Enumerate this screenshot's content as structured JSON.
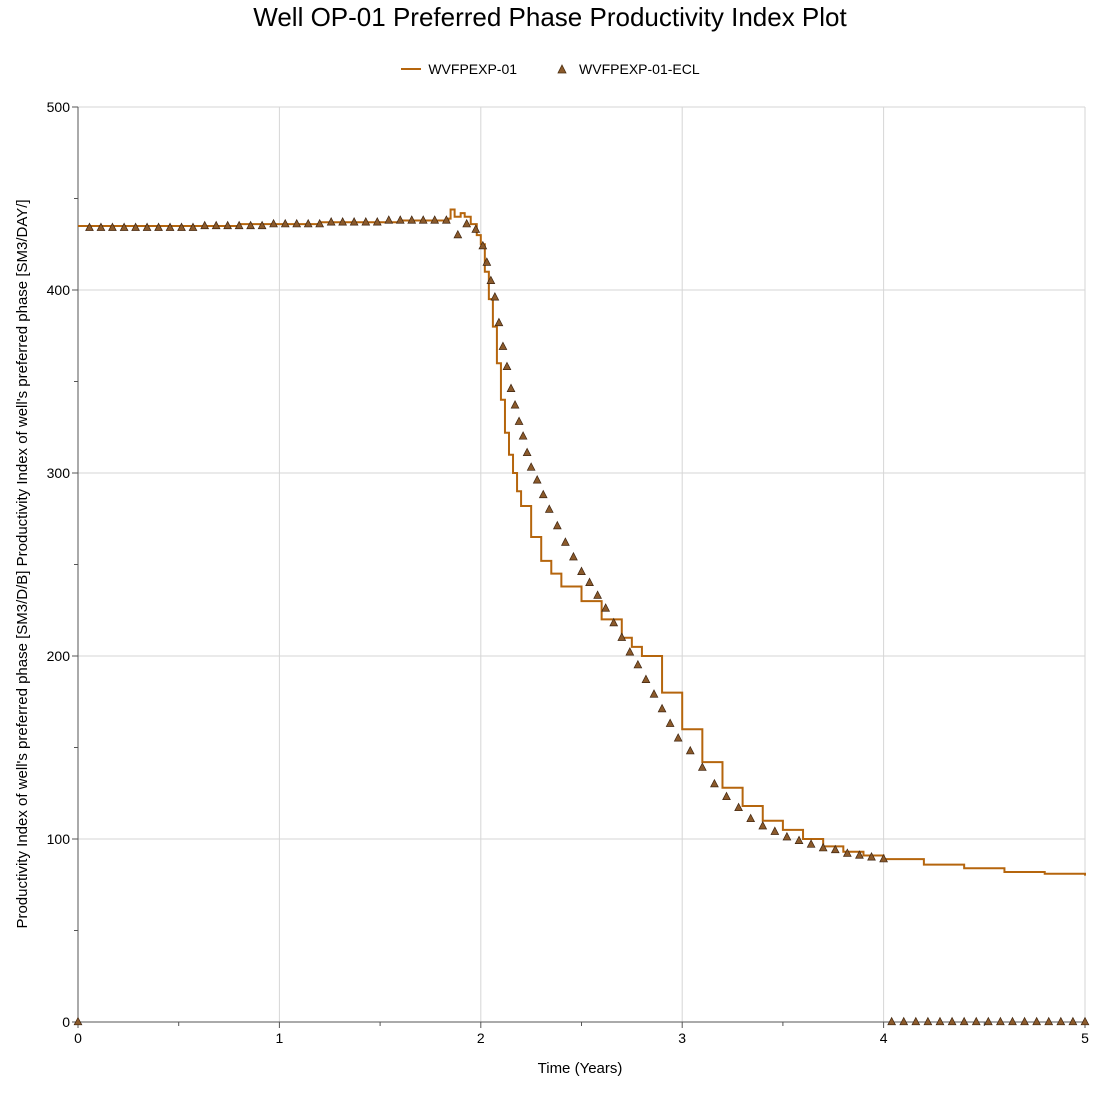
{
  "chart_data": {
    "type": "line",
    "title": "Well OP-01 Preferred Phase Productivity Index Plot",
    "xlabel": "Time (Years)",
    "ylabel": "Productivity Index of well's preferred phase [SM3/D/B] Productivity Index of well's preferred phase [SM3/DAY/]",
    "xlim": [
      0,
      5
    ],
    "ylim": [
      0,
      500
    ],
    "x_ticks": [
      "0",
      "1",
      "2",
      "3",
      "4",
      "5"
    ],
    "y_ticks": [
      "0",
      "100",
      "200",
      "300",
      "400",
      "500"
    ],
    "grid": true,
    "legend_position": "top-center",
    "series": [
      {
        "name": "WVFPEXP-01",
        "style": "step-line",
        "color": "#b5650d",
        "x": [
          0,
          0.2,
          0.4,
          0.6,
          0.8,
          1.0,
          1.2,
          1.4,
          1.6,
          1.84,
          1.85,
          1.87,
          1.9,
          1.92,
          1.95,
          1.98,
          2.0,
          2.02,
          2.04,
          2.06,
          2.08,
          2.1,
          2.12,
          2.14,
          2.16,
          2.18,
          2.2,
          2.25,
          2.3,
          2.35,
          2.4,
          2.5,
          2.6,
          2.7,
          2.75,
          2.8,
          2.9,
          3.0,
          3.1,
          3.2,
          3.3,
          3.4,
          3.5,
          3.6,
          3.7,
          3.8,
          3.9,
          4.0,
          4.2,
          4.4,
          4.6,
          4.8,
          5.0
        ],
        "y": [
          435,
          435,
          435,
          435,
          436,
          436,
          437,
          437,
          438,
          439,
          444,
          440,
          442,
          440,
          436,
          430,
          425,
          410,
          395,
          380,
          360,
          340,
          322,
          310,
          300,
          290,
          282,
          265,
          252,
          245,
          238,
          230,
          220,
          210,
          205,
          200,
          180,
          160,
          142,
          128,
          118,
          110,
          105,
          100,
          96,
          93,
          91,
          89,
          86,
          84,
          82,
          81,
          80
        ]
      },
      {
        "name": "WVFPEXP-01-ECL",
        "style": "triangle-markers",
        "color": "#8b5a2b",
        "x": [
          0,
          0.057,
          0.114,
          0.171,
          0.229,
          0.286,
          0.343,
          0.4,
          0.457,
          0.514,
          0.571,
          0.629,
          0.686,
          0.743,
          0.8,
          0.857,
          0.914,
          0.971,
          1.029,
          1.086,
          1.143,
          1.2,
          1.257,
          1.314,
          1.371,
          1.429,
          1.486,
          1.543,
          1.6,
          1.657,
          1.714,
          1.771,
          1.829,
          1.886,
          1.93,
          1.975,
          2.01,
          2.03,
          2.05,
          2.07,
          2.09,
          2.11,
          2.13,
          2.15,
          2.17,
          2.19,
          2.21,
          2.23,
          2.25,
          2.28,
          2.31,
          2.34,
          2.38,
          2.42,
          2.46,
          2.5,
          2.54,
          2.58,
          2.62,
          2.66,
          2.7,
          2.74,
          2.78,
          2.82,
          2.86,
          2.9,
          2.94,
          2.98,
          3.04,
          3.1,
          3.16,
          3.22,
          3.28,
          3.34,
          3.4,
          3.46,
          3.52,
          3.58,
          3.64,
          3.7,
          3.76,
          3.82,
          3.88,
          3.94,
          4.0,
          4.04,
          4.1,
          4.16,
          4.22,
          4.28,
          4.34,
          4.4,
          4.46,
          4.52,
          4.58,
          4.64,
          4.7,
          4.76,
          4.82,
          4.88,
          4.94,
          5.0
        ],
        "y": [
          0,
          434,
          434,
          434,
          434,
          434,
          434,
          434,
          434,
          434,
          434,
          435,
          435,
          435,
          435,
          435,
          435,
          436,
          436,
          436,
          436,
          436,
          437,
          437,
          437,
          437,
          437,
          438,
          438,
          438,
          438,
          438,
          438,
          430,
          436,
          433,
          424,
          415,
          405,
          396,
          382,
          369,
          358,
          346,
          337,
          328,
          320,
          311,
          303,
          296,
          288,
          280,
          271,
          262,
          254,
          246,
          240,
          233,
          226,
          218,
          210,
          202,
          195,
          187,
          179,
          171,
          163,
          155,
          148,
          139,
          130,
          123,
          117,
          111,
          107,
          104,
          101,
          99,
          97,
          95,
          94,
          92,
          91,
          90,
          89,
          0,
          0,
          0,
          0,
          0,
          0,
          0,
          0,
          0,
          0,
          0,
          0,
          0,
          0,
          0,
          0,
          0
        ]
      }
    ]
  }
}
